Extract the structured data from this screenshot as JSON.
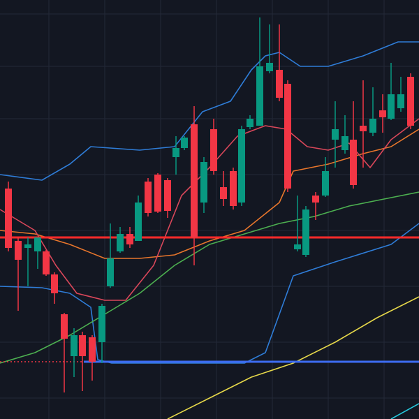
{
  "chart_data": {
    "type": "candlestick",
    "background": "#131722",
    "grid": true,
    "grid_color": "#232838",
    "xlim": [
      0,
      600
    ],
    "ylim": [
      0,
      600
    ],
    "xticks": [
      70,
      150,
      230,
      310,
      390,
      470,
      550
    ],
    "yticks": [
      30,
      110,
      190,
      270,
      350,
      430,
      505,
      580
    ],
    "up_color": "#089981",
    "down_color": "#f23645",
    "x": [
      12,
      26,
      40,
      54,
      66,
      78,
      92,
      106,
      118,
      132,
      146,
      158,
      172,
      186,
      198,
      212,
      226,
      240,
      252,
      264,
      278,
      292,
      306,
      320,
      334,
      346,
      358,
      372,
      386,
      400,
      412,
      426,
      438,
      452,
      466,
      480,
      494,
      506,
      520,
      534,
      548,
      560,
      574,
      588
    ],
    "open": [
      330,
      255,
      245,
      240,
      240,
      207,
      150,
      90,
      120,
      117,
      110,
      190,
      240,
      265,
      255,
      340,
      350,
      342,
      375,
      388,
      422,
      310,
      415,
      332,
      355,
      310,
      418,
      420,
      498,
      500,
      480,
      243,
      235,
      320,
      320,
      400,
      385,
      400,
      420,
      410,
      442,
      430,
      445,
      490
    ],
    "close": [
      245,
      228,
      250,
      260,
      207,
      180,
      115,
      120,
      90,
      82,
      162,
      230,
      265,
      250,
      310,
      295,
      297,
      298,
      388,
      403,
      260,
      368,
      355,
      315,
      305,
      415,
      430,
      505,
      510,
      460,
      330,
      250,
      300,
      310,
      355,
      415,
      405,
      335,
      412,
      430,
      432,
      465,
      465,
      420
    ],
    "high": [
      340,
      260,
      260,
      260,
      242,
      210,
      152,
      130,
      125,
      120,
      165,
      280,
      275,
      275,
      320,
      345,
      352,
      345,
      405,
      405,
      448,
      375,
      430,
      355,
      360,
      420,
      435,
      575,
      565,
      565,
      485,
      320,
      305,
      325,
      375,
      455,
      435,
      455,
      485,
      475,
      465,
      510,
      490,
      495
    ],
    "low": [
      240,
      155,
      190,
      215,
      205,
      165,
      38,
      60,
      40,
      55,
      80,
      188,
      238,
      245,
      255,
      290,
      295,
      288,
      350,
      385,
      220,
      295,
      350,
      305,
      300,
      305,
      415,
      420,
      495,
      455,
      325,
      240,
      232,
      285,
      318,
      360,
      380,
      330,
      360,
      405,
      410,
      428,
      440,
      415
    ],
    "overlays": [
      {
        "color": "#2f7dd8",
        "x": [
          0,
          60,
          100,
          130,
          200,
          250,
          290,
          330,
          360,
          380,
          400,
          430,
          470,
          520,
          570,
          600
        ],
        "values": [
          350,
          342,
          365,
          390,
          385,
          390,
          440,
          455,
          500,
          520,
          525,
          505,
          505,
          520,
          540,
          540
        ]
      },
      {
        "color": "#2f7dd8",
        "x": [
          0,
          60,
          100,
          130,
          140,
          160,
          200,
          260,
          330,
          350,
          380,
          400,
          420,
          480,
          560,
          600
        ],
        "values": [
          190,
          188,
          180,
          160,
          85,
          80,
          80,
          80,
          80,
          80,
          95,
          150,
          205,
          225,
          250,
          280
        ]
      },
      {
        "color": "#e8762c",
        "x": [
          0,
          50,
          100,
          150,
          200,
          250,
          300,
          350,
          400,
          420,
          470,
          520,
          560,
          600
        ],
        "values": [
          270,
          265,
          250,
          230,
          230,
          235,
          255,
          270,
          310,
          355,
          365,
          380,
          390,
          415
        ]
      },
      {
        "color": "#d9475a",
        "x": [
          0,
          50,
          80,
          110,
          150,
          180,
          220,
          260,
          300,
          340,
          380,
          410,
          440,
          470,
          500,
          530,
          560,
          600
        ],
        "values": [
          300,
          270,
          220,
          180,
          170,
          170,
          220,
          320,
          360,
          405,
          420,
          415,
          390,
          385,
          395,
          360,
          400,
          430
        ]
      },
      {
        "color": "#4caf50",
        "x": [
          0,
          50,
          100,
          150,
          200,
          250,
          300,
          350,
          400,
          450,
          500,
          550,
          600
        ],
        "values": [
          80,
          95,
          120,
          150,
          180,
          220,
          250,
          265,
          280,
          290,
          305,
          315,
          325
        ]
      },
      {
        "color": "#e6d84a",
        "x": [
          240,
          300,
          360,
          420,
          480,
          540,
          600
        ],
        "values": [
          0,
          30,
          60,
          80,
          110,
          145,
          175
        ]
      },
      {
        "color": "#26c6da",
        "x": [
          560,
          600
        ],
        "values": [
          0,
          22
        ]
      },
      {
        "color": "#ff2a2a",
        "width": 3,
        "x": [
          0,
          600
        ],
        "values": [
          260,
          260
        ]
      },
      {
        "color": "#3d6cf2",
        "width": 3,
        "x": [
          120,
          600
        ],
        "values": [
          82,
          82
        ]
      },
      {
        "color": "#f23645",
        "dashed": true,
        "x": [
          0,
          120
        ],
        "values": [
          82,
          82
        ]
      }
    ]
  }
}
